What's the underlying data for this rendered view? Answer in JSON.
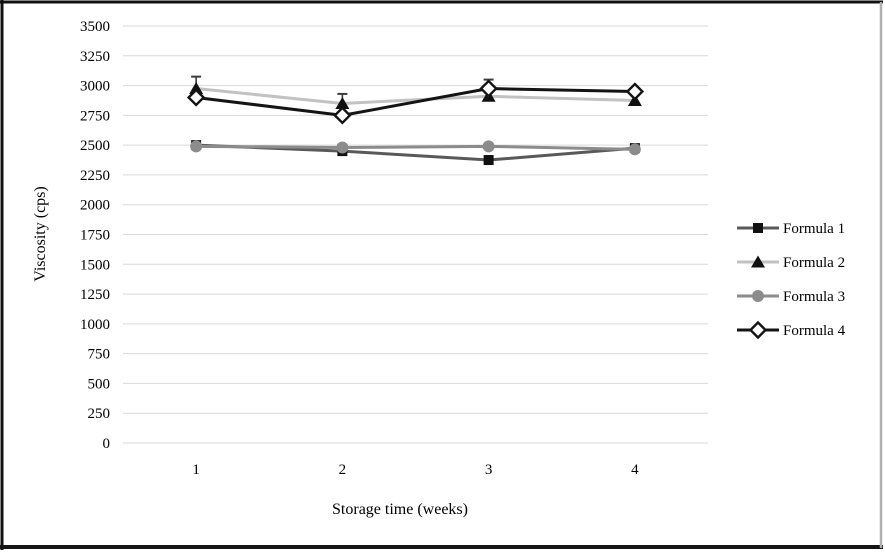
{
  "chart_data": {
    "type": "line",
    "title": "",
    "xlabel": "Storage time (weeks)",
    "ylabel": "Viscosity (cps)",
    "x_categories": [
      "1",
      "2",
      "3",
      "4"
    ],
    "ylim": [
      0,
      3500
    ],
    "yticks": [
      0,
      250,
      500,
      750,
      1000,
      1250,
      1500,
      1750,
      2000,
      2250,
      2500,
      2750,
      3000,
      3250,
      3500
    ],
    "grid": "horizontal-only",
    "gridline_color": "#d9d9d9",
    "error_bar_color": "#3a3a3a",
    "legend_position": "right",
    "series": [
      {
        "name": "Formula 1",
        "marker": "square",
        "line_color": "#595959",
        "marker_fill": "#111111",
        "values": [
          2500,
          2450,
          2375,
          2475
        ]
      },
      {
        "name": "Formula 2",
        "marker": "triangle",
        "line_color": "#c2c2c2",
        "marker_fill": "#111111",
        "values": [
          2975,
          2850,
          2910,
          2875
        ],
        "error_up": [
          100,
          80,
          140,
          0
        ]
      },
      {
        "name": "Formula 3",
        "marker": "circle",
        "line_color": "#8c8c8c",
        "marker_fill": "#8c8c8c",
        "values": [
          2490,
          2480,
          2490,
          2465
        ]
      },
      {
        "name": "Formula 4",
        "marker": "diamond",
        "line_color": "#141414",
        "marker_fill": "#ffffff",
        "marker_stroke": "#141414",
        "values": [
          2900,
          2750,
          2975,
          2950
        ]
      }
    ]
  }
}
